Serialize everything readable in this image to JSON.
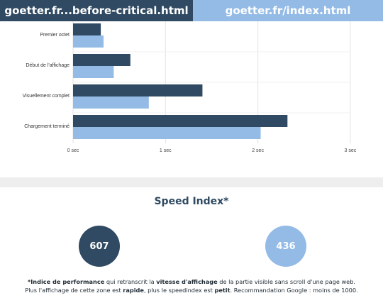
{
  "tabs": {
    "left": "goetter.fr...before-critical.html",
    "right": "goetter.fr/index.html"
  },
  "colors": {
    "dark": "#2f4a62",
    "light": "#93bbe6",
    "grid": "#e3e3e3"
  },
  "chart_data": {
    "type": "bar",
    "orientation": "horizontal",
    "categories": [
      "Premier octet",
      "Début de l'affichage",
      "Visuellement complet",
      "Chargement terminé"
    ],
    "series": [
      {
        "values": [
          0.3,
          0.62,
          1.4,
          2.32
        ]
      },
      {
        "values": [
          0.33,
          0.44,
          0.82,
          2.03
        ]
      }
    ],
    "x_ticks": [
      "0 sec",
      "1 sec",
      "2 sec",
      "3 sec"
    ],
    "xlim": [
      0,
      3
    ],
    "grid": true
  },
  "speed_index": {
    "title": "Speed Index*",
    "value_a": "607",
    "value_b": "436"
  },
  "note": {
    "line1_bold1": "*Indice de performance",
    "line1_text1": " qui retranscrit la ",
    "line1_bold2": "vitesse d'affichage",
    "line1_text2": " de la partie visible sans scroll d'une page web.",
    "line2_text1": "Plus l'affichage de cette zone est ",
    "line2_bold1": "rapide",
    "line2_text2": ", plus le speedindex est ",
    "line2_bold2": "petit",
    "line2_text3": ". Recommandation Google : moins de 1000."
  }
}
